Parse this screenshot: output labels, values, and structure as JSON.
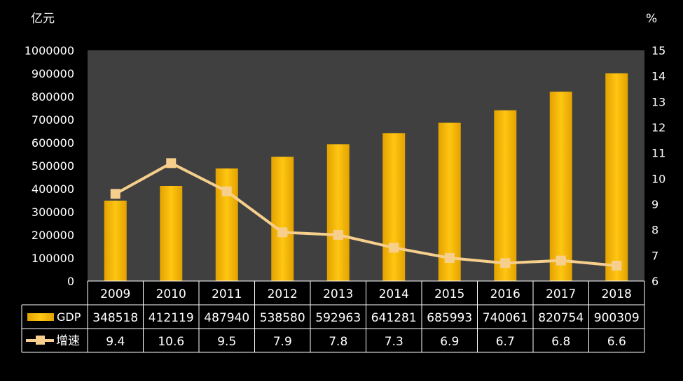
{
  "chart_data": {
    "type": "bar",
    "y_left_unit": "亿元",
    "y_right_unit": "%",
    "y_left_lim": [
      0,
      1000000
    ],
    "y_left_ticks": [
      0,
      100000,
      200000,
      300000,
      400000,
      500000,
      600000,
      700000,
      800000,
      900000,
      1000000
    ],
    "y_right_lim": [
      6,
      15
    ],
    "y_right_ticks": [
      6,
      7,
      8,
      9,
      10,
      11,
      12,
      13,
      14,
      15
    ],
    "categories": [
      "2009",
      "2010",
      "2011",
      "2012",
      "2013",
      "2014",
      "2015",
      "2016",
      "2017",
      "2018"
    ],
    "series": [
      {
        "name": "GDP",
        "type": "bar",
        "axis": "left",
        "color": "#F0B400",
        "values": [
          348518,
          412119,
          487940,
          538580,
          592963,
          641281,
          685993,
          740061,
          820754,
          900309
        ],
        "labels": [
          "348518",
          "412119",
          "487940",
          "538580",
          "592963",
          "641281",
          "685993",
          "740061",
          "820754",
          "900309"
        ]
      },
      {
        "name": "增速",
        "type": "line",
        "axis": "right",
        "color": "#F7CF8C",
        "values": [
          9.4,
          10.6,
          9.5,
          7.9,
          7.8,
          7.3,
          6.9,
          6.7,
          6.8,
          6.6
        ],
        "labels": [
          "9.4",
          "10.6",
          "9.5",
          "7.9",
          "7.8",
          "7.3",
          "6.9",
          "6.7",
          "6.8",
          "6.6"
        ]
      }
    ],
    "plot_background": "#404040",
    "grid": false,
    "data_table": true
  }
}
